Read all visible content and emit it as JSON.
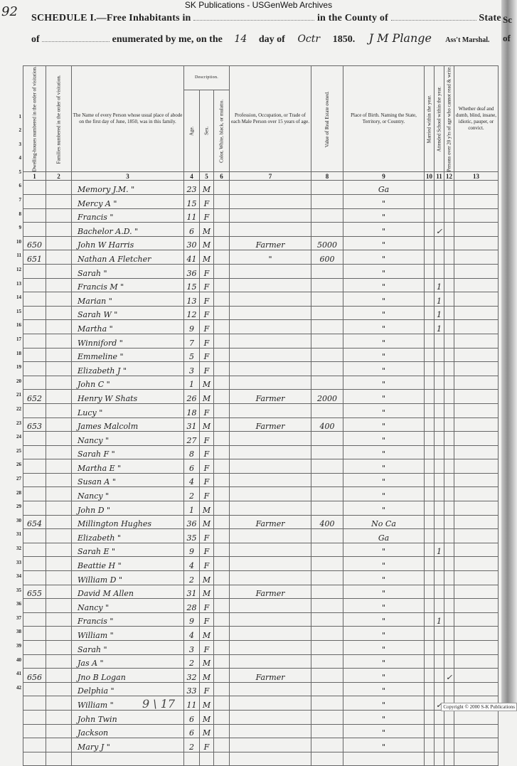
{
  "watermark": "SK Publications - USGenWeb Archives",
  "page_number": "92",
  "header": {
    "line1_a": "SCHEDULE I.—Free Inhabitants in",
    "line1_b": "in the County of",
    "line1_c": "State",
    "line2_a": "of",
    "line2_b": "enumerated by me, on the",
    "day": "14",
    "line2_c": "day of",
    "month": "Octr",
    "year": "1850.",
    "marshal_signature": "J M Plange",
    "line2_d": "Ass't Marshal."
  },
  "columns": [
    {
      "num": "1",
      "label": "Dwelling-houses numbered in the order of visitation."
    },
    {
      "num": "2",
      "label": "Families numbered in the order of visitation."
    },
    {
      "num": "3",
      "label": "The Name of every Person whose usual place of abode on the first day of June, 1850, was in this family."
    },
    {
      "num": "4",
      "label": "Age."
    },
    {
      "num": "5",
      "label": "Sex."
    },
    {
      "num": "6",
      "label": "Color, White, black, or mulatto."
    },
    {
      "num": "7",
      "label": "Profession, Occupation, or Trade of each Male Person over 15 years of age."
    },
    {
      "num": "8",
      "label": "Value of Real Estate owned."
    },
    {
      "num": "9",
      "label": "Place of Birth. Naming the State, Territory, or Country."
    },
    {
      "num": "10",
      "label": "Married within the year."
    },
    {
      "num": "11",
      "label": "Attended School within the year."
    },
    {
      "num": "12",
      "label": "Persons over 20 y'rs of age who cannot read & write."
    },
    {
      "num": "13",
      "label": "Whether deaf and dumb, blind, insane, idiotic, pauper, or convict."
    }
  ],
  "description_group": "Description.",
  "rows": [
    {
      "line": "1",
      "dwelling": "",
      "name": "Memory J.M.  \"",
      "age": "23",
      "sex": "M",
      "occupation": "",
      "value": "",
      "birthplace": "Ga",
      "school": "",
      "illiterate": ""
    },
    {
      "line": "2",
      "dwelling": "",
      "name": "Mercy A  \"",
      "age": "15",
      "sex": "F",
      "occupation": "",
      "value": "",
      "birthplace": "\"",
      "school": "",
      "illiterate": ""
    },
    {
      "line": "3",
      "dwelling": "",
      "name": "Francis  \"",
      "age": "11",
      "sex": "F",
      "occupation": "",
      "value": "",
      "birthplace": "\"",
      "school": "",
      "illiterate": ""
    },
    {
      "line": "4",
      "dwelling": "",
      "name": "Bachelor A.D. \"",
      "age": "6",
      "sex": "M",
      "occupation": "",
      "value": "",
      "birthplace": "\"",
      "school": "✓",
      "illiterate": ""
    },
    {
      "line": "5",
      "dwelling": "650",
      "name": "John W Harris",
      "age": "30",
      "sex": "M",
      "occupation": "Farmer",
      "value": "5000",
      "birthplace": "\"",
      "school": "",
      "illiterate": ""
    },
    {
      "line": "6",
      "dwelling": "651",
      "name": "Nathan A Fletcher",
      "age": "41",
      "sex": "M",
      "occupation": "\"",
      "value": "600",
      "birthplace": "\"",
      "school": "",
      "illiterate": ""
    },
    {
      "line": "7",
      "dwelling": "",
      "name": "Sarah  \"",
      "age": "36",
      "sex": "F",
      "occupation": "",
      "value": "",
      "birthplace": "\"",
      "school": "",
      "illiterate": ""
    },
    {
      "line": "8",
      "dwelling": "",
      "name": "Francis M  \"",
      "age": "15",
      "sex": "F",
      "occupation": "",
      "value": "",
      "birthplace": "\"",
      "school": "1",
      "illiterate": ""
    },
    {
      "line": "9",
      "dwelling": "",
      "name": "Marian  \"",
      "age": "13",
      "sex": "F",
      "occupation": "",
      "value": "",
      "birthplace": "\"",
      "school": "1",
      "illiterate": ""
    },
    {
      "line": "10",
      "dwelling": "",
      "name": "Sarah W  \"",
      "age": "12",
      "sex": "F",
      "occupation": "",
      "value": "",
      "birthplace": "\"",
      "school": "1",
      "illiterate": ""
    },
    {
      "line": "11",
      "dwelling": "",
      "name": "Martha  \"",
      "age": "9",
      "sex": "F",
      "occupation": "",
      "value": "",
      "birthplace": "\"",
      "school": "1",
      "illiterate": ""
    },
    {
      "line": "12",
      "dwelling": "",
      "name": "Winniford  \"",
      "age": "7",
      "sex": "F",
      "occupation": "",
      "value": "",
      "birthplace": "\"",
      "school": "",
      "illiterate": ""
    },
    {
      "line": "13",
      "dwelling": "",
      "name": "Emmeline  \"",
      "age": "5",
      "sex": "F",
      "occupation": "",
      "value": "",
      "birthplace": "\"",
      "school": "",
      "illiterate": ""
    },
    {
      "line": "14",
      "dwelling": "",
      "name": "Elizabeth J  \"",
      "age": "3",
      "sex": "F",
      "occupation": "",
      "value": "",
      "birthplace": "\"",
      "school": "",
      "illiterate": ""
    },
    {
      "line": "15",
      "dwelling": "",
      "name": "John C  \"",
      "age": "1",
      "sex": "M",
      "occupation": "",
      "value": "",
      "birthplace": "\"",
      "school": "",
      "illiterate": ""
    },
    {
      "line": "16",
      "dwelling": "652",
      "name": "Henry W Shats",
      "age": "26",
      "sex": "M",
      "occupation": "Farmer",
      "value": "2000",
      "birthplace": "\"",
      "school": "",
      "illiterate": ""
    },
    {
      "line": "17",
      "dwelling": "",
      "name": "Lucy  \"",
      "age": "18",
      "sex": "F",
      "occupation": "",
      "value": "",
      "birthplace": "\"",
      "school": "",
      "illiterate": ""
    },
    {
      "line": "18",
      "dwelling": "653",
      "name": "James Malcolm",
      "age": "31",
      "sex": "M",
      "occupation": "Farmer",
      "value": "400",
      "birthplace": "\"",
      "school": "",
      "illiterate": ""
    },
    {
      "line": "19",
      "dwelling": "",
      "name": "Nancy  \"",
      "age": "27",
      "sex": "F",
      "occupation": "",
      "value": "",
      "birthplace": "\"",
      "school": "",
      "illiterate": ""
    },
    {
      "line": "20",
      "dwelling": "",
      "name": "Sarah F  \"",
      "age": "8",
      "sex": "F",
      "occupation": "",
      "value": "",
      "birthplace": "\"",
      "school": "",
      "illiterate": ""
    },
    {
      "line": "21",
      "dwelling": "",
      "name": "Martha E  \"",
      "age": "6",
      "sex": "F",
      "occupation": "",
      "value": "",
      "birthplace": "\"",
      "school": "",
      "illiterate": ""
    },
    {
      "line": "22",
      "dwelling": "",
      "name": "Susan A  \"",
      "age": "4",
      "sex": "F",
      "occupation": "",
      "value": "",
      "birthplace": "\"",
      "school": "",
      "illiterate": ""
    },
    {
      "line": "23",
      "dwelling": "",
      "name": "Nancy  \"",
      "age": "2",
      "sex": "F",
      "occupation": "",
      "value": "",
      "birthplace": "\"",
      "school": "",
      "illiterate": ""
    },
    {
      "line": "24",
      "dwelling": "",
      "name": "John D  \"",
      "age": "1",
      "sex": "M",
      "occupation": "",
      "value": "",
      "birthplace": "\"",
      "school": "",
      "illiterate": ""
    },
    {
      "line": "25",
      "dwelling": "654",
      "name": "Millington Hughes",
      "age": "36",
      "sex": "M",
      "occupation": "Farmer",
      "value": "400",
      "birthplace": "No Ca",
      "school": "",
      "illiterate": ""
    },
    {
      "line": "26",
      "dwelling": "",
      "name": "Elizabeth  \"",
      "age": "35",
      "sex": "F",
      "occupation": "",
      "value": "",
      "birthplace": "Ga",
      "school": "",
      "illiterate": ""
    },
    {
      "line": "27",
      "dwelling": "",
      "name": "Sarah E  \"",
      "age": "9",
      "sex": "F",
      "occupation": "",
      "value": "",
      "birthplace": "\"",
      "school": "1",
      "illiterate": ""
    },
    {
      "line": "28",
      "dwelling": "",
      "name": "Beattie H  \"",
      "age": "4",
      "sex": "F",
      "occupation": "",
      "value": "",
      "birthplace": "\"",
      "school": "",
      "illiterate": ""
    },
    {
      "line": "29",
      "dwelling": "",
      "name": "William D  \"",
      "age": "2",
      "sex": "M",
      "occupation": "",
      "value": "",
      "birthplace": "\"",
      "school": "",
      "illiterate": ""
    },
    {
      "line": "30",
      "dwelling": "655",
      "name": "David M Allen",
      "age": "31",
      "sex": "M",
      "occupation": "Farmer",
      "value": "",
      "birthplace": "\"",
      "school": "",
      "illiterate": ""
    },
    {
      "line": "31",
      "dwelling": "",
      "name": "Nancy  \"",
      "age": "28",
      "sex": "F",
      "occupation": "",
      "value": "",
      "birthplace": "\"",
      "school": "",
      "illiterate": ""
    },
    {
      "line": "32",
      "dwelling": "",
      "name": "Francis  \"",
      "age": "9",
      "sex": "F",
      "occupation": "",
      "value": "",
      "birthplace": "\"",
      "school": "1",
      "illiterate": ""
    },
    {
      "line": "33",
      "dwelling": "",
      "name": "William  \"",
      "age": "4",
      "sex": "M",
      "occupation": "",
      "value": "",
      "birthplace": "\"",
      "school": "",
      "illiterate": ""
    },
    {
      "line": "34",
      "dwelling": "",
      "name": "Sarah  \"",
      "age": "3",
      "sex": "F",
      "occupation": "",
      "value": "",
      "birthplace": "\"",
      "school": "",
      "illiterate": ""
    },
    {
      "line": "35",
      "dwelling": "",
      "name": "Jas A  \"",
      "age": "2",
      "sex": "M",
      "occupation": "",
      "value": "",
      "birthplace": "\"",
      "school": "",
      "illiterate": ""
    },
    {
      "line": "36",
      "dwelling": "656",
      "name": "Jno B Logan",
      "age": "32",
      "sex": "M",
      "occupation": "Farmer",
      "value": "",
      "birthplace": "\"",
      "school": "",
      "illiterate": "✓"
    },
    {
      "line": "37",
      "dwelling": "",
      "name": "Delphia  \"",
      "age": "33",
      "sex": "F",
      "occupation": "",
      "value": "",
      "birthplace": "\"",
      "school": "",
      "illiterate": ""
    },
    {
      "line": "38",
      "dwelling": "",
      "name": "William  \"",
      "age": "11",
      "sex": "M",
      "occupation": "",
      "value": "",
      "birthplace": "\"",
      "school": "✓",
      "illiterate": ""
    },
    {
      "line": "39",
      "dwelling": "",
      "name": "John   Twin",
      "age": "6",
      "sex": "M",
      "occupation": "",
      "value": "",
      "birthplace": "\"",
      "school": "",
      "illiterate": ""
    },
    {
      "line": "40",
      "dwelling": "",
      "name": "Jackson",
      "age": "6",
      "sex": "M",
      "occupation": "",
      "value": "",
      "birthplace": "\"",
      "school": "",
      "illiterate": ""
    },
    {
      "line": "41",
      "dwelling": "",
      "name": "Mary J  \"",
      "age": "2",
      "sex": "F",
      "occupation": "",
      "value": "",
      "birthplace": "\"",
      "school": "",
      "illiterate": ""
    },
    {
      "line": "42",
      "dwelling": "",
      "name": "",
      "age": "",
      "sex": "",
      "occupation": "",
      "value": "",
      "birthplace": "",
      "school": "",
      "illiterate": ""
    }
  ],
  "footer_note": "9  \\  17",
  "copyright": "Copyright © 2000 S-K Publications",
  "adjacent_page": {
    "line1": "Sc",
    "line2": "of"
  }
}
